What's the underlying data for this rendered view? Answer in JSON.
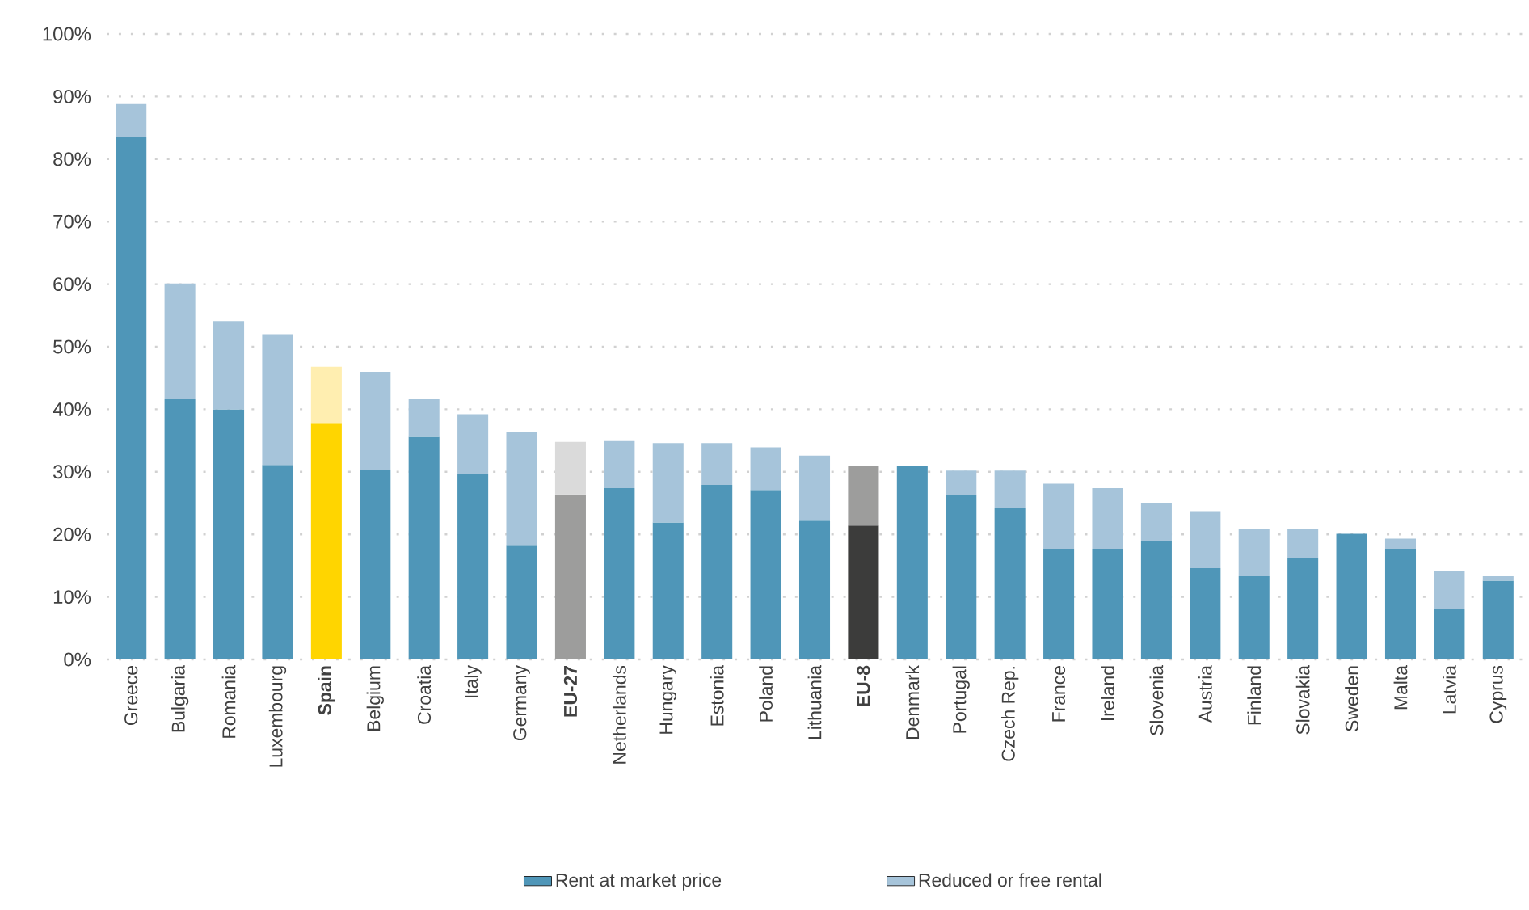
{
  "chart_data": {
    "type": "bar",
    "stacked": true,
    "categories": [
      "Greece",
      "Bulgaria",
      "Romania",
      "Luxembourg",
      "**Spain**",
      "Belgium",
      "Croatia",
      "Italy",
      "Germany",
      "**EU-27**",
      "Netherlands",
      "Hungary",
      "Estonia",
      "Poland",
      "Lithuania",
      "**EU-8**",
      "Denmark",
      "Portugal",
      "Czech Rep.",
      "France",
      "Ireland",
      "Slovenia",
      "Austria",
      "Finland",
      "Slovakia",
      "Sweden",
      "Malta",
      "Latvia",
      "Cyprus"
    ],
    "series": [
      {
        "name": "Rent at market price",
        "color": "#4f96b8",
        "values": [
          83.6,
          41.6,
          40.0,
          31.1,
          37.7,
          30.3,
          35.6,
          29.6,
          18.3,
          26.4,
          27.4,
          21.9,
          27.9,
          27.1,
          22.2,
          21.4,
          31.0,
          26.3,
          24.2,
          17.7,
          17.7,
          19.0,
          14.6,
          13.3,
          16.2,
          20.1,
          17.7,
          8.1,
          12.6
        ],
        "colors": [
          "#4f96b8",
          "#4f96b8",
          "#4f96b8",
          "#4f96b8",
          "#ffd500",
          "#4f96b8",
          "#4f96b8",
          "#4f96b8",
          "#4f96b8",
          "#9d9d9c",
          "#4f96b8",
          "#4f96b8",
          "#4f96b8",
          "#4f96b8",
          "#4f96b8",
          "#3c3c3b",
          "#4f96b8",
          "#4f96b8",
          "#4f96b8",
          "#4f96b8",
          "#4f96b8",
          "#4f96b8",
          "#4f96b8",
          "#4f96b8",
          "#4f96b8",
          "#4f96b8",
          "#4f96b8",
          "#4f96b8",
          "#4f96b8"
        ]
      },
      {
        "name": "Reduced or free rental",
        "color": "#a6c4da",
        "values": [
          5.2,
          18.5,
          14.1,
          20.9,
          9.1,
          15.7,
          6.0,
          9.6,
          18.0,
          8.4,
          7.5,
          12.7,
          6.7,
          6.8,
          10.4,
          9.6,
          0,
          3.9,
          6.0,
          10.4,
          9.7,
          6.0,
          9.1,
          7.6,
          4.7,
          0,
          1.6,
          6.0,
          0.7
        ],
        "colors": [
          "#a6c4da",
          "#a6c4da",
          "#a6c4da",
          "#a6c4da",
          "#ffeeb0",
          "#a6c4da",
          "#a6c4da",
          "#a6c4da",
          "#a6c4da",
          "#dadada",
          "#a6c4da",
          "#a6c4da",
          "#a6c4da",
          "#a6c4da",
          "#a6c4da",
          "#9d9d9c",
          "#a6c4da",
          "#a6c4da",
          "#a6c4da",
          "#a6c4da",
          "#a6c4da",
          "#a6c4da",
          "#a6c4da",
          "#a6c4da",
          "#a6c4da",
          "#a6c4da",
          "#a6c4da",
          "#a6c4da",
          "#a6c4da"
        ]
      }
    ],
    "ylim": [
      0,
      100
    ],
    "yticks": [
      {
        "value": 0,
        "label": "0%"
      },
      {
        "value": 10,
        "label": "10%"
      },
      {
        "value": 20,
        "label": "20%"
      },
      {
        "value": 30,
        "label": "30%"
      },
      {
        "value": 40,
        "label": "40%"
      },
      {
        "value": 50,
        "label": "50%"
      },
      {
        "value": 60,
        "label": "60%"
      },
      {
        "value": 70,
        "label": "70%"
      },
      {
        "value": 80,
        "label": "80%"
      },
      {
        "value": 90,
        "label": "90%"
      },
      {
        "value": 100,
        "label": "100%"
      }
    ],
    "grid": "y",
    "legend": "bottom"
  }
}
